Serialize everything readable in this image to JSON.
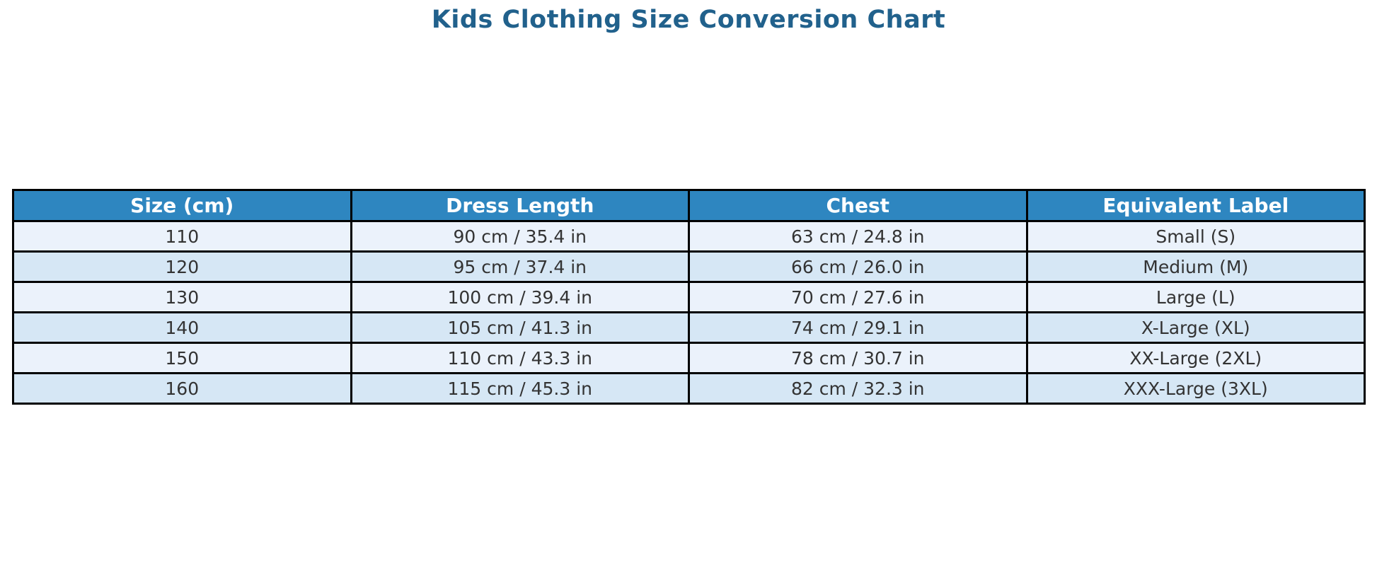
{
  "title": "Kids Clothing Size Conversion Chart",
  "colors": {
    "page_bg": "#ffffff",
    "title_text": "#21618c",
    "header_bg": "#2e86c0",
    "header_text": "#ffffff",
    "row_odd_bg": "#ebf2fb",
    "row_even_bg": "#d6e7f5",
    "cell_text": "#333333",
    "border": "#000000"
  },
  "chart_data": {
    "type": "table",
    "title": "Kids Clothing Size Conversion Chart",
    "columns": [
      "Size (cm)",
      "Dress Length",
      "Chest",
      "Equivalent Label"
    ],
    "rows": [
      [
        "110",
        "90 cm / 35.4 in",
        "63 cm / 24.8 in",
        "Small (S)"
      ],
      [
        "120",
        "95 cm / 37.4 in",
        "66 cm / 26.0 in",
        "Medium (M)"
      ],
      [
        "130",
        "100 cm / 39.4 in",
        "70 cm / 27.6 in",
        "Large (L)"
      ],
      [
        "140",
        "105 cm / 41.3 in",
        "74 cm / 29.1 in",
        "X-Large (XL)"
      ],
      [
        "150",
        "110 cm / 43.3 in",
        "78 cm / 30.7 in",
        "XX-Large (2XL)"
      ],
      [
        "160",
        "115 cm / 45.3 in",
        "82 cm / 32.3 in",
        "XXX-Large (3XL)"
      ]
    ],
    "legend": null,
    "grid": false
  }
}
